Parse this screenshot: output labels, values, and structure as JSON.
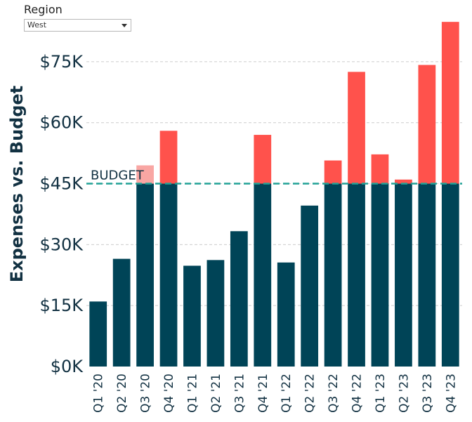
{
  "filter": {
    "label": "Region",
    "selected": "West",
    "icon": "chevron-down-icon"
  },
  "chart_data": {
    "type": "bar",
    "stacked": true,
    "ylabel": "Expenses vs. Budget",
    "ylim": [
      0,
      85000
    ],
    "yticks": [
      "$0K",
      "$15K",
      "$30K",
      "$45K",
      "$60K",
      "$75K"
    ],
    "ytick_values": [
      0,
      15000,
      30000,
      45000,
      60000,
      75000
    ],
    "grid": true,
    "budget": {
      "label": "BUDGET",
      "value": 45000
    },
    "categories": [
      "Q1 '20",
      "Q2 '20",
      "Q3 '20",
      "Q4 '20",
      "Q1 '21",
      "Q2 '21",
      "Q3 '21",
      "Q4 '21",
      "Q1 '22",
      "Q2 '22",
      "Q3 '22",
      "Q4 '22",
      "Q1 '23",
      "Q2 '23",
      "Q3 '23",
      "Q4 '23"
    ],
    "totals": [
      16000,
      26500,
      49500,
      58000,
      24800,
      26200,
      33300,
      57000,
      25600,
      39600,
      50700,
      72500,
      52200,
      46000,
      74200,
      84800
    ],
    "colors": {
      "under_budget": "#004457",
      "over_budget": "#ff524c",
      "over_budget_highlight": "#f9a6a3",
      "budget_line": "#22a297",
      "grid": "#cccccc",
      "text": "#123142"
    }
  }
}
